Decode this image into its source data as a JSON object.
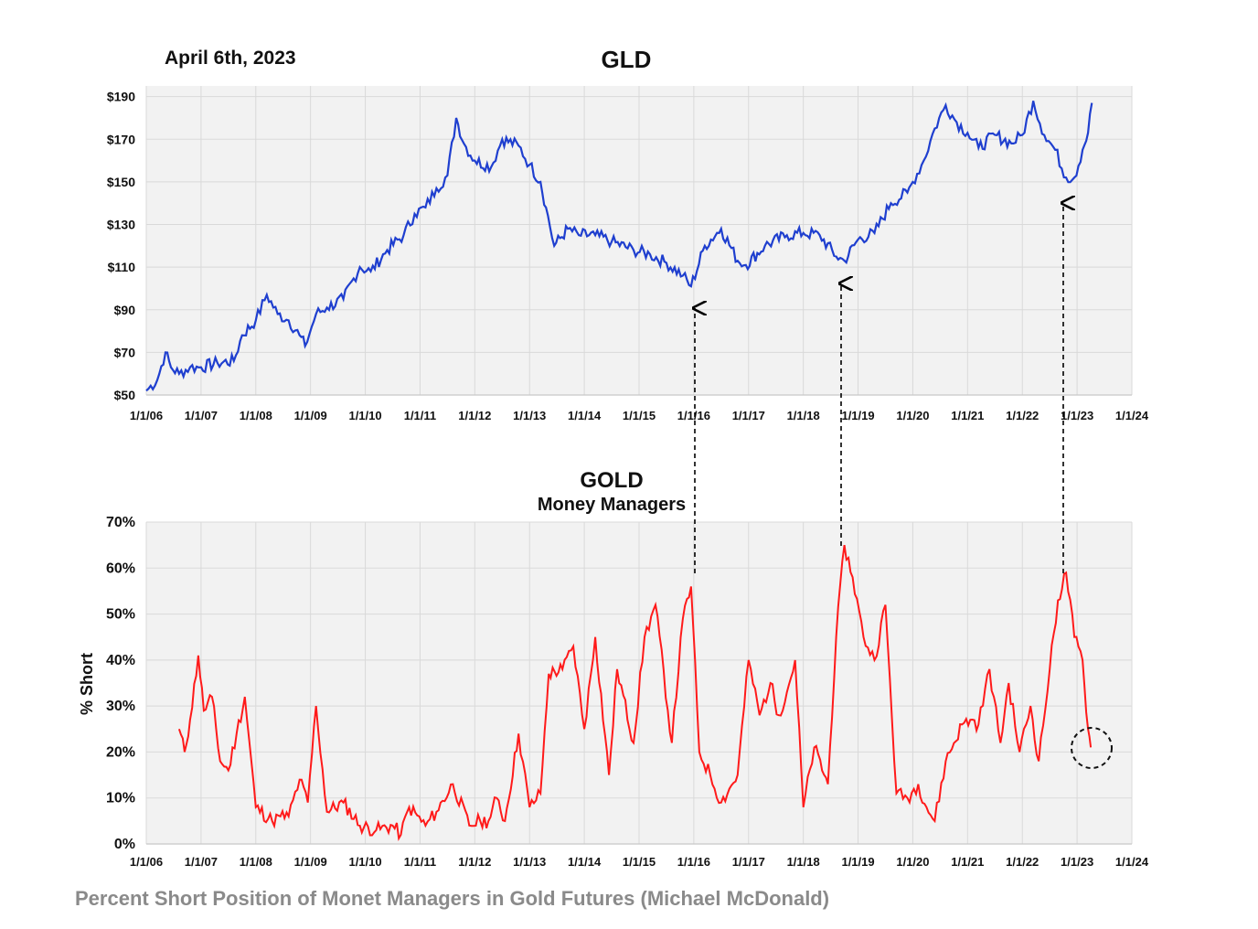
{
  "caption": "Percent Short Position of Monet Managers in Gold Futures (Michael McDonald)",
  "colors": {
    "price_line": "#1f3fcf",
    "short_line": "#ff1a1a",
    "grid": "#d9d9d9",
    "plot_bg": "#f2f2f2",
    "arrow": "#000000"
  },
  "chart_data": [
    {
      "type": "line",
      "title": "GLD",
      "date_label": "April 6th, 2023",
      "xlabel": "",
      "ylabel": "",
      "x_range": [
        2006.0,
        2024.0
      ],
      "ylim": [
        50,
        195
      ],
      "y_ticks": [
        50,
        70,
        90,
        110,
        130,
        150,
        170,
        190
      ],
      "y_tick_labels": [
        "$50",
        "$70",
        "$90",
        "$110",
        "$130",
        "$150",
        "$170",
        "$190"
      ],
      "x_tick_labels": [
        "1/1/06",
        "1/1/07",
        "1/1/08",
        "1/1/09",
        "1/1/10",
        "1/1/11",
        "1/1/12",
        "1/1/13",
        "1/1/14",
        "1/1/15",
        "1/1/16",
        "1/1/17",
        "1/1/18",
        "1/1/19",
        "1/1/20",
        "1/1/21",
        "1/1/22",
        "1/1/23",
        "1/1/24"
      ],
      "series": [
        {
          "name": "GLD",
          "x": [
            2006.0,
            2006.2,
            2006.35,
            2006.45,
            2006.6,
            2006.8,
            2007.0,
            2007.3,
            2007.6,
            2007.75,
            2008.0,
            2008.2,
            2008.4,
            2008.6,
            2008.8,
            2008.9,
            2009.1,
            2009.3,
            2009.6,
            2009.9,
            2010.1,
            2010.4,
            2010.7,
            2010.9,
            2011.1,
            2011.3,
            2011.5,
            2011.66,
            2011.8,
            2012.0,
            2012.3,
            2012.5,
            2012.8,
            2013.0,
            2013.2,
            2013.3,
            2013.45,
            2013.7,
            2013.9,
            2014.2,
            2014.5,
            2014.9,
            2015.2,
            2015.5,
            2015.8,
            2015.95,
            2016.2,
            2016.5,
            2016.8,
            2016.95,
            2017.3,
            2017.7,
            2018.0,
            2018.3,
            2018.6,
            2018.75,
            2019.0,
            2019.3,
            2019.6,
            2019.9,
            2020.0,
            2020.2,
            2020.4,
            2020.6,
            2020.8,
            2021.0,
            2021.2,
            2021.5,
            2021.8,
            2022.0,
            2022.2,
            2022.4,
            2022.6,
            2022.8,
            2022.95,
            2023.1,
            2023.2,
            2023.27
          ],
          "values": [
            52,
            57,
            70,
            63,
            60,
            63,
            63,
            65,
            66,
            78,
            85,
            97,
            88,
            85,
            78,
            73,
            88,
            91,
            95,
            110,
            108,
            118,
            125,
            135,
            138,
            147,
            153,
            180,
            168,
            160,
            157,
            170,
            167,
            158,
            150,
            138,
            120,
            128,
            125,
            125,
            122,
            118,
            116,
            112,
            106,
            101,
            120,
            128,
            113,
            111,
            120,
            125,
            126,
            125,
            115,
            113,
            123,
            126,
            140,
            145,
            150,
            160,
            175,
            186,
            178,
            173,
            166,
            172,
            168,
            172,
            188,
            172,
            165,
            152,
            152,
            165,
            173,
            187
          ]
        }
      ],
      "annotations": [
        "arrow at 1/1/16 trough",
        "arrow at late 2018 trough",
        "arrow at late 2022 trough"
      ]
    },
    {
      "type": "line",
      "title": "GOLD",
      "subtitle": "Money Managers",
      "xlabel": "",
      "ylabel": "% Short",
      "x_range": [
        2006.0,
        2024.0
      ],
      "ylim": [
        0,
        70
      ],
      "y_ticks": [
        0,
        10,
        20,
        30,
        40,
        50,
        60,
        70
      ],
      "y_tick_labels": [
        "0%",
        "10%",
        "20%",
        "30%",
        "40%",
        "50%",
        "60%",
        "70%"
      ],
      "x_tick_labels": [
        "1/1/06",
        "1/1/07",
        "1/1/08",
        "1/1/09",
        "1/1/10",
        "1/1/11",
        "1/1/12",
        "1/1/13",
        "1/1/14",
        "1/1/15",
        "1/1/16",
        "1/1/17",
        "1/1/18",
        "1/1/19",
        "1/1/20",
        "1/1/21",
        "1/1/22",
        "1/1/23",
        "1/1/24"
      ],
      "series": [
        {
          "name": "% Short",
          "x": [
            2006.6,
            2006.7,
            2006.8,
            2006.95,
            2007.05,
            2007.2,
            2007.35,
            2007.5,
            2007.65,
            2007.8,
            2008.0,
            2008.3,
            2008.45,
            2008.6,
            2008.8,
            2008.95,
            2009.1,
            2009.3,
            2009.6,
            2009.9,
            2010.2,
            2010.5,
            2010.65,
            2010.8,
            2011.1,
            2011.3,
            2011.6,
            2011.9,
            2012.1,
            2012.25,
            2012.4,
            2012.55,
            2012.8,
            2013.0,
            2013.2,
            2013.35,
            2013.6,
            2013.8,
            2014.0,
            2014.2,
            2014.45,
            2014.6,
            2014.9,
            2015.1,
            2015.3,
            2015.6,
            2015.8,
            2015.95,
            2016.1,
            2016.3,
            2016.5,
            2016.8,
            2017.0,
            2017.2,
            2017.4,
            2017.55,
            2017.7,
            2017.85,
            2018.0,
            2018.2,
            2018.45,
            2018.6,
            2018.75,
            2018.9,
            2019.1,
            2019.3,
            2019.5,
            2019.7,
            2019.9,
            2020.1,
            2020.25,
            2020.4,
            2020.6,
            2020.9,
            2021.05,
            2021.2,
            2021.4,
            2021.6,
            2021.75,
            2021.95,
            2022.15,
            2022.3,
            2022.5,
            2022.65,
            2022.8,
            2022.95,
            2023.1,
            2023.2,
            2023.25
          ],
          "values": [
            25,
            20,
            27,
            41,
            29,
            32,
            18,
            16,
            24,
            32,
            8,
            5,
            6,
            6,
            14,
            9,
            30,
            7,
            9,
            4,
            3,
            4,
            2,
            8,
            4,
            7,
            13,
            4,
            5,
            5,
            10,
            5,
            24,
            8,
            11,
            37,
            38,
            43,
            25,
            45,
            15,
            38,
            22,
            45,
            52,
            22,
            49,
            56,
            20,
            15,
            9,
            15,
            40,
            28,
            35,
            28,
            33,
            40,
            8,
            21,
            13,
            45,
            65,
            58,
            45,
            40,
            52,
            11,
            10,
            13,
            8,
            5,
            18,
            26,
            27,
            26,
            38,
            22,
            35,
            20,
            30,
            18,
            38,
            53,
            59,
            45,
            40,
            25,
            21
          ]
        }
      ],
      "annotations": [
        "dashed circle around latest value ~21%"
      ]
    }
  ]
}
